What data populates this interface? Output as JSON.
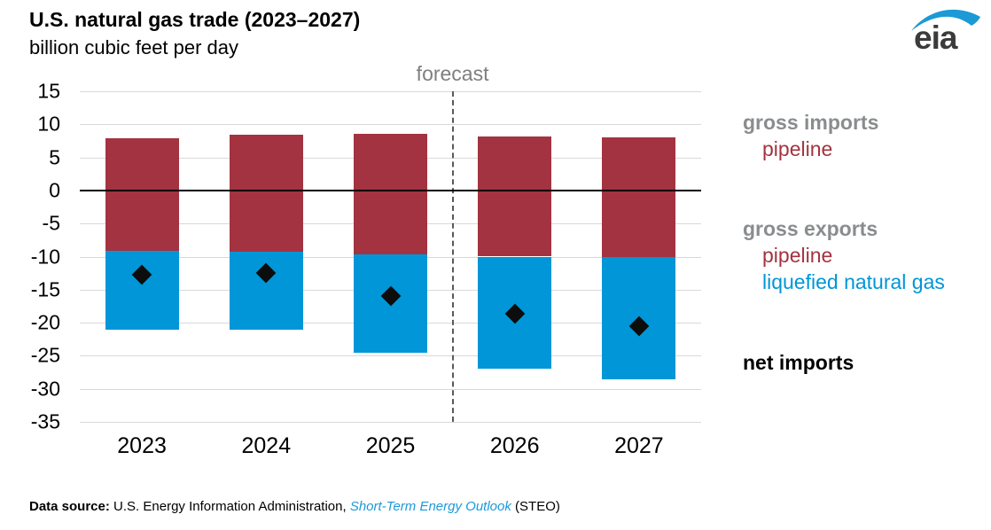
{
  "header": {
    "title": "U.S. natural gas trade (2023–2027)",
    "subtitle": "billion cubic feet per day",
    "logo_text": "eia"
  },
  "chart_data": {
    "type": "bar",
    "stacked": true,
    "title": "U.S. natural gas trade (2023–2027)",
    "ylabel": "billion cubic feet per day",
    "categories": [
      "2023",
      "2024",
      "2025",
      "2026",
      "2027"
    ],
    "series": [
      {
        "name": "gross imports pipeline",
        "color": "#a33340",
        "values": [
          7.9,
          8.4,
          8.5,
          8.1,
          8.0
        ]
      },
      {
        "name": "gross exports pipeline",
        "color": "#a33340",
        "values": [
          -9.1,
          -9.2,
          -9.6,
          -10.0,
          -10.1
        ]
      },
      {
        "name": "gross exports liquefied natural gas",
        "color": "#0096d7",
        "values": [
          -11.9,
          -11.9,
          -14.9,
          -16.9,
          -18.5
        ]
      }
    ],
    "markers": {
      "name": "net imports",
      "shape": "diamond",
      "color": "#0d0d0d",
      "values": [
        -12.8,
        -12.5,
        -15.9,
        -18.7,
        -20.5
      ]
    },
    "ylim": [
      -35,
      15
    ],
    "yticks": [
      15,
      10,
      5,
      0,
      -5,
      -10,
      -15,
      -20,
      -25,
      -30,
      -35
    ],
    "grid": true,
    "legend_position": "right",
    "forecast_label": "forecast",
    "forecast_after_category": "2025"
  },
  "legend": {
    "gross_imports": "gross imports",
    "imports_pipeline": "pipeline",
    "gross_exports": "gross exports",
    "exports_pipeline": "pipeline",
    "exports_lng": "liquefied natural gas",
    "net_imports": "net imports"
  },
  "footer": {
    "label": "Data source:",
    "text": " U.S. Energy Information Administration, ",
    "link": "Short-Term Energy Outlook",
    "suffix": " (STEO)"
  },
  "colors": {
    "pipeline_red": "#a33340",
    "lng_blue": "#0096d7",
    "legend_gray": "#8a8c8e",
    "grid_gray": "#d9d9d9",
    "zero_line": "#000000",
    "forecast_gray": "#7f7f7f",
    "link_blue": "#1a9ad8",
    "logo_blue": "#1b9ad6"
  }
}
